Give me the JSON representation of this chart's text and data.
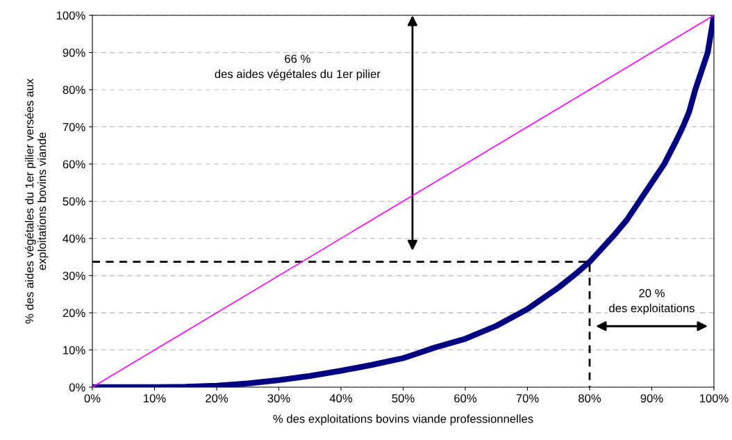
{
  "chart_data": {
    "type": "line",
    "xlabel": "% des exploitations bovins viande professionnelles",
    "ylabel": "% des aides végétales du 1er pilier versées aux\nexploitations bovins viande",
    "xlim": [
      0,
      100
    ],
    "ylim": [
      0,
      100
    ],
    "xticks": [
      {
        "value": 0,
        "label": "0%"
      },
      {
        "value": 10,
        "label": "10%"
      },
      {
        "value": 20,
        "label": "20%"
      },
      {
        "value": 30,
        "label": "30%"
      },
      {
        "value": 40,
        "label": "40%"
      },
      {
        "value": 50,
        "label": "50%"
      },
      {
        "value": 60,
        "label": "60%"
      },
      {
        "value": 70,
        "label": "70%"
      },
      {
        "value": 80,
        "label": "80%"
      },
      {
        "value": 90,
        "label": "90%"
      },
      {
        "value": 100,
        "label": "100%"
      }
    ],
    "yticks": [
      {
        "value": 0,
        "label": "0%"
      },
      {
        "value": 10,
        "label": "10%"
      },
      {
        "value": 20,
        "label": "20%"
      },
      {
        "value": 30,
        "label": "30%"
      },
      {
        "value": 40,
        "label": "40%"
      },
      {
        "value": 50,
        "label": "50%"
      },
      {
        "value": 60,
        "label": "60%"
      },
      {
        "value": 70,
        "label": "70%"
      },
      {
        "value": 80,
        "label": "80%"
      },
      {
        "value": 90,
        "label": "90%"
      },
      {
        "value": 100,
        "label": "100%"
      }
    ],
    "grid": "y",
    "legend": false,
    "series": [
      {
        "color": "#ff00ff",
        "x": [
          0,
          100
        ],
        "values": [
          0,
          100
        ],
        "line_style": "solid"
      },
      {
        "color": "#000000",
        "x": [
          0,
          80,
          80
        ],
        "values": [
          33.7,
          33.7,
          0
        ],
        "line_style": "dashed"
      },
      {
        "color": "#000080",
        "x": [
          0,
          10,
          15,
          20,
          25,
          30,
          35,
          40,
          45,
          50,
          52,
          55,
          60,
          65,
          70,
          75,
          78,
          80,
          84,
          86,
          88,
          90,
          92,
          94,
          95,
          96,
          97,
          98,
          99,
          100
        ],
        "values": [
          0,
          0,
          0.1,
          0.4,
          1.0,
          1.9,
          3.0,
          4.4,
          6.0,
          7.8,
          8.9,
          10.6,
          13,
          16.5,
          21,
          26.8,
          30.8,
          33.7,
          41,
          45,
          50,
          55,
          60,
          66.5,
          70,
          74,
          80,
          85,
          90,
          100
        ],
        "line_style": "solid"
      }
    ],
    "annotations": [
      "66 %\ndes aides végétales du 1er pilier",
      "20 %\ndes exploitations"
    ]
  }
}
